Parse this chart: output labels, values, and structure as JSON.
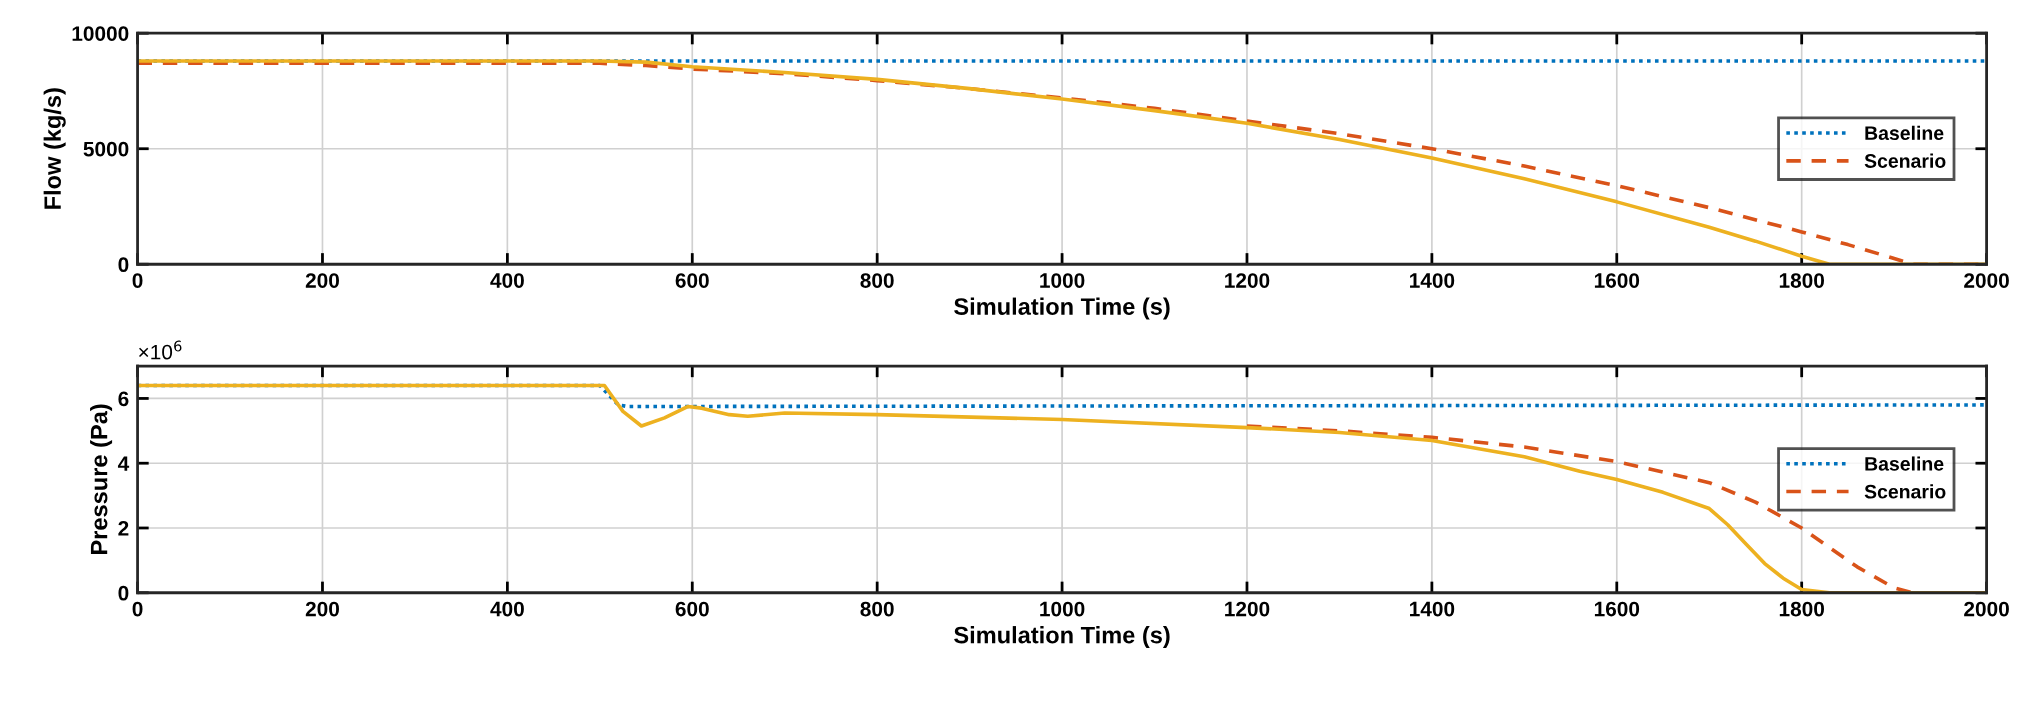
{
  "chart_data": [
    {
      "type": "line",
      "ylabel": "Flow (kg/s)",
      "xlabel": "Simulation Time (s)",
      "xlim": [
        0,
        2000
      ],
      "xticks": [
        0,
        200,
        400,
        600,
        800,
        1000,
        1200,
        1400,
        1600,
        1800,
        2000
      ],
      "ylim": [
        0,
        10000
      ],
      "yticks": [
        0,
        5000,
        10000
      ],
      "grid": true,
      "legend": "right",
      "series": [
        {
          "name": "Baseline",
          "color": "#0072bd",
          "line_style": "dotted",
          "x": [
            0,
            2000
          ],
          "values": [
            8800,
            8800
          ]
        },
        {
          "name": "Scenario",
          "color": "#d95319",
          "line_style": "dashed",
          "x": [
            0,
            450,
            500,
            550,
            600,
            700,
            800,
            900,
            1000,
            1100,
            1200,
            1300,
            1400,
            1500,
            1600,
            1700,
            1800,
            1850,
            1900,
            1920,
            2000
          ],
          "values": [
            8700,
            8700,
            8700,
            8600,
            8450,
            8250,
            7950,
            7600,
            7200,
            6750,
            6200,
            5650,
            5000,
            4250,
            3400,
            2450,
            1400,
            850,
            250,
            0,
            0
          ]
        },
        {
          "color": "#edb120",
          "line_style": "solid",
          "x": [
            0,
            500,
            550,
            600,
            700,
            800,
            900,
            1000,
            1100,
            1200,
            1300,
            1400,
            1500,
            1600,
            1700,
            1750,
            1800,
            1830,
            2000
          ],
          "values": [
            8800,
            8800,
            8750,
            8550,
            8300,
            8000,
            7600,
            7150,
            6650,
            6100,
            5400,
            4600,
            3700,
            2700,
            1600,
            1000,
            350,
            0,
            0
          ]
        }
      ]
    },
    {
      "type": "line",
      "ylabel": "Pressure (Pa)",
      "xlabel": "Simulation Time (s)",
      "annotations": [
        "×10$^{6}$"
      ],
      "xlim": [
        0,
        2000
      ],
      "xticks": [
        0,
        200,
        400,
        600,
        800,
        1000,
        1200,
        1400,
        1600,
        1800,
        2000
      ],
      "ylim": [
        0,
        7
      ],
      "yticks": [
        0,
        2,
        4,
        6
      ],
      "grid": true,
      "legend": "right",
      "series": [
        {
          "name": "Baseline",
          "color": "#0072bd",
          "line_style": "dotted",
          "x": [
            0,
            500,
            510,
            520,
            530,
            2000
          ],
          "values": [
            6.4,
            6.4,
            6.1,
            5.8,
            5.75,
            5.8
          ]
        },
        {
          "name": "Scenario",
          "color": "#d95319",
          "line_style": "dashed",
          "x": [
            1200,
            1300,
            1400,
            1500,
            1600,
            1700,
            1750,
            1800,
            1830,
            1860,
            1900,
            1920,
            2000
          ],
          "values": [
            5.15,
            5.0,
            4.8,
            4.5,
            4.05,
            3.4,
            2.8,
            2.0,
            1.4,
            0.8,
            0.15,
            0,
            0
          ]
        },
        {
          "color": "#edb120",
          "line_style": "solid",
          "x": [
            0,
            505,
            515,
            525,
            545,
            570,
            595,
            610,
            640,
            660,
            700,
            800,
            1000,
            1200,
            1300,
            1400,
            1500,
            1560,
            1600,
            1650,
            1700,
            1720,
            1740,
            1760,
            1780,
            1800,
            1830,
            2000
          ],
          "values": [
            6.4,
            6.4,
            6.0,
            5.6,
            5.15,
            5.4,
            5.75,
            5.7,
            5.5,
            5.45,
            5.55,
            5.5,
            5.35,
            5.1,
            4.95,
            4.7,
            4.2,
            3.75,
            3.5,
            3.1,
            2.6,
            2.1,
            1.5,
            0.9,
            0.45,
            0.1,
            0,
            0
          ]
        }
      ]
    }
  ]
}
